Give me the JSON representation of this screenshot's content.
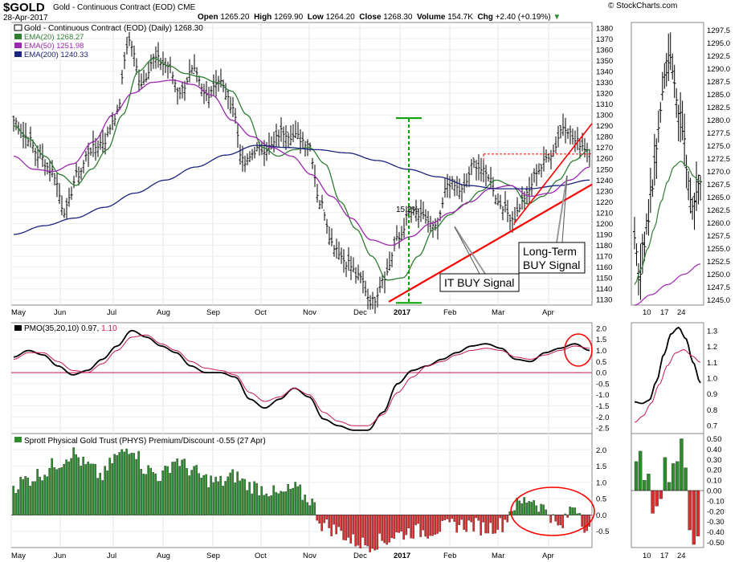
{
  "header": {
    "symbol": "$GOLD",
    "subtitle": "Gold - Continuous Contract (EOD) CME",
    "date": "28-Apr-2017",
    "brand": "© StockCharts.com",
    "open_label": "Open",
    "open": "1265.20",
    "high_label": "High",
    "high": "1269.90",
    "low_label": "Low",
    "low": "1264.20",
    "close_label": "Close",
    "close": "1268.30",
    "volume_label": "Volume",
    "volume": "154.7K",
    "chg_label": "Chg",
    "chg": "+2.40 (+0.19%)"
  },
  "legend": {
    "main": "Gold - Continuous Contract (EOD) (Daily) 1268.30",
    "ema20": "EMA(20) 1268.27",
    "ema50": "EMA(50) 1251.98",
    "ema200": "EMA(200) 1240.33",
    "pmo_prefix": "PMO(35,20,10) 0.97, ",
    "pmo_signal": "1.10",
    "phys": "Sprott Physical Gold Trust (PHYS) Premium/Discount -0.55 (27 Apr)"
  },
  "annotations": {
    "pct": "15.2%",
    "it_buy": "IT BUY Signal",
    "lt_buy_1": "Long-Term",
    "lt_buy_2": "BUY Signal"
  },
  "colors": {
    "price": "#000000",
    "ema20": "#2e7d32",
    "ema50": "#9c27b0",
    "ema200": "#1a237e",
    "pmo_signal": "#c2185b",
    "histo_pos": "#2e8b2e",
    "histo_neg": "#d62f2f",
    "annotation": "#ff0000",
    "measure": "#00a000"
  },
  "chart_data": [
    {
      "type": "line",
      "panel": "price",
      "title": "Gold - Continuous Contract (EOD) (Daily) 1268.30",
      "x_tick_labels": [
        "May",
        "Jun",
        "Jul",
        "Aug",
        "Sep",
        "Oct",
        "Nov",
        "Dec",
        "2017",
        "Feb",
        "Mar",
        "Apr"
      ],
      "ylim": [
        1125,
        1385
      ],
      "y_ticks": [
        1130,
        1140,
        1150,
        1160,
        1170,
        1180,
        1190,
        1200,
        1210,
        1220,
        1230,
        1240,
        1250,
        1260,
        1270,
        1280,
        1290,
        1300,
        1310,
        1320,
        1330,
        1340,
        1350,
        1360,
        1370,
        1380
      ],
      "close_anchors": [
        1295,
        1280,
        1262,
        1248,
        1212,
        1245,
        1268,
        1275,
        1300,
        1368,
        1330,
        1352,
        1345,
        1322,
        1340,
        1318,
        1332,
        1310,
        1255,
        1268,
        1270,
        1285,
        1280,
        1275,
        1218,
        1180,
        1165,
        1150,
        1128,
        1152,
        1185,
        1210,
        1205,
        1195,
        1238,
        1230,
        1255,
        1245,
        1218,
        1205,
        1225,
        1250,
        1265,
        1290,
        1275,
        1268
      ],
      "series": [
        {
          "name": "EMA(20)",
          "value_last": 1268.27,
          "anchors": [
            1290,
            1278,
            1262,
            1245,
            1235,
            1250,
            1268,
            1300,
            1340,
            1352,
            1345,
            1338,
            1335,
            1330,
            1322,
            1300,
            1270,
            1262,
            1268,
            1270,
            1255,
            1220,
            1195,
            1170,
            1148,
            1150,
            1170,
            1195,
            1208,
            1218,
            1230,
            1240,
            1235,
            1218,
            1225,
            1240,
            1258,
            1268
          ]
        },
        {
          "name": "EMA(50)",
          "value_last": 1251.98,
          "anchors": [
            1262,
            1250,
            1248,
            1255,
            1275,
            1300,
            1320,
            1330,
            1332,
            1328,
            1318,
            1295,
            1280,
            1270,
            1262,
            1245,
            1225,
            1205,
            1185,
            1180,
            1188,
            1200,
            1210,
            1220,
            1232,
            1235,
            1225,
            1228,
            1240,
            1252
          ]
        },
        {
          "name": "EMA(200)",
          "value_last": 1240.33,
          "anchors": [
            1190,
            1198,
            1205,
            1215,
            1228,
            1240,
            1252,
            1263,
            1272,
            1270,
            1268,
            1265,
            1258,
            1250,
            1243,
            1235,
            1232,
            1232,
            1235,
            1240
          ]
        }
      ]
    },
    {
      "type": "line",
      "panel": "pmo",
      "title": "PMO(35,20,10) 0.97, 1.10",
      "ylim": [
        -2.75,
        2.25
      ],
      "y_ticks": [
        2.0,
        1.5,
        1.0,
        0.5,
        0.0,
        -0.5,
        -1.0,
        -1.5,
        -2.0,
        -2.5
      ],
      "series": [
        {
          "name": "PMO",
          "value_last": 0.97,
          "anchors": [
            0.7,
            1.0,
            0.8,
            0.3,
            -0.1,
            0.1,
            0.6,
            1.2,
            1.9,
            1.6,
            1.2,
            0.9,
            0.3,
            0.0,
            0.0,
            -0.2,
            -1.2,
            -1.6,
            -1.2,
            -0.7,
            -1.1,
            -2.1,
            -2.4,
            -2.6,
            -2.6,
            -1.8,
            -0.5,
            0.1,
            0.3,
            0.6,
            0.9,
            1.2,
            1.3,
            1.1,
            0.6,
            0.5,
            0.9,
            1.1,
            1.3,
            1.0
          ]
        },
        {
          "name": "PMO signal",
          "value_last": 1.1,
          "anchors": [
            0.6,
            0.9,
            0.9,
            0.5,
            0.1,
            0.0,
            0.4,
            1.0,
            1.6,
            1.7,
            1.3,
            1.0,
            0.5,
            0.2,
            0.1,
            -0.1,
            -0.9,
            -1.3,
            -1.1,
            -0.7,
            -1.0,
            -1.8,
            -2.2,
            -2.4,
            -2.4,
            -1.9,
            -0.9,
            -0.2,
            0.3,
            0.5,
            0.8,
            1.0,
            1.1,
            1.0,
            0.7,
            0.6,
            0.8,
            1.0,
            1.2,
            1.1
          ]
        }
      ]
    },
    {
      "type": "bar",
      "panel": "phys",
      "title": "Sprott Physical Gold Trust (PHYS) Premium/Discount -0.55 (27 Apr)",
      "ylim": [
        -1.0,
        2.5
      ],
      "y_ticks": [
        2.0,
        1.5,
        1.0,
        0.5,
        0.0,
        -0.5
      ],
      "anchors": [
        0.9,
        1.1,
        1.3,
        1.6,
        1.9,
        1.5,
        1.2,
        1.8,
        2.1,
        1.4,
        1.2,
        1.7,
        1.4,
        1.1,
        1.0,
        1.2,
        0.9,
        0.8,
        0.6,
        0.8,
        0.5,
        -0.3,
        -0.5,
        -0.8,
        -0.9,
        -0.8,
        -0.6,
        -0.5,
        -0.5,
        -0.4,
        -0.3,
        -0.3,
        -0.4,
        -0.3,
        0.3,
        0.5,
        0.2,
        -0.4,
        0.3,
        -0.5
      ]
    },
    {
      "type": "line",
      "panel": "zoom-price",
      "x_tick_labels": [
        "10",
        "17",
        "24"
      ],
      "ylim": [
        1244,
        1299
      ],
      "y_ticks": [
        1245.0,
        1247.5,
        1250.0,
        1252.5,
        1255.0,
        1257.5,
        1260.0,
        1262.5,
        1265.0,
        1267.5,
        1270.0,
        1272.5,
        1275.0,
        1277.5,
        1280.0,
        1282.5,
        1285.0,
        1287.5,
        1290.0,
        1292.5,
        1295.0,
        1297.5
      ],
      "close_anchors": [
        1256,
        1250,
        1255,
        1260,
        1268,
        1275,
        1282,
        1290,
        1293,
        1288,
        1282,
        1278,
        1270,
        1264,
        1266,
        1268
      ],
      "series": [
        {
          "name": "EMA(20)",
          "anchors": [
            1248,
            1251,
            1255,
            1259,
            1264,
            1268,
            1271,
            1272,
            1271,
            1269,
            1268
          ]
        },
        {
          "name": "EMA(50)",
          "anchors": [
            1244,
            1246,
            1248,
            1250,
            1252
          ]
        }
      ]
    },
    {
      "type": "line",
      "panel": "zoom-pmo",
      "ylim": [
        0.65,
        1.35
      ],
      "y_ticks": [
        1.3,
        1.2,
        1.1,
        1.0,
        0.9,
        0.8,
        0.7
      ],
      "series": [
        {
          "name": "PMO",
          "anchors": [
            0.85,
            0.84,
            0.86,
            0.98,
            1.15,
            1.28,
            1.32,
            1.25,
            1.1,
            0.97
          ]
        },
        {
          "name": "PMO signal",
          "anchors": [
            0.72,
            0.76,
            0.84,
            0.96,
            1.08,
            1.16,
            1.18,
            1.14,
            1.1
          ]
        }
      ]
    },
    {
      "type": "bar",
      "panel": "zoom-phys",
      "ylim": [
        -0.55,
        0.55
      ],
      "y_ticks": [
        0.5,
        0.4,
        0.3,
        0.2,
        0.1,
        0.0,
        -0.1,
        -0.2,
        -0.3,
        -0.4,
        -0.5
      ],
      "values": [
        0.28,
        0.38,
        0.1,
        0.16,
        -0.22,
        -0.15,
        -0.08,
        0.32,
        0.08,
        0.26,
        0.28,
        0.5,
        0.22,
        -0.38,
        -0.52,
        -0.44
      ]
    }
  ]
}
